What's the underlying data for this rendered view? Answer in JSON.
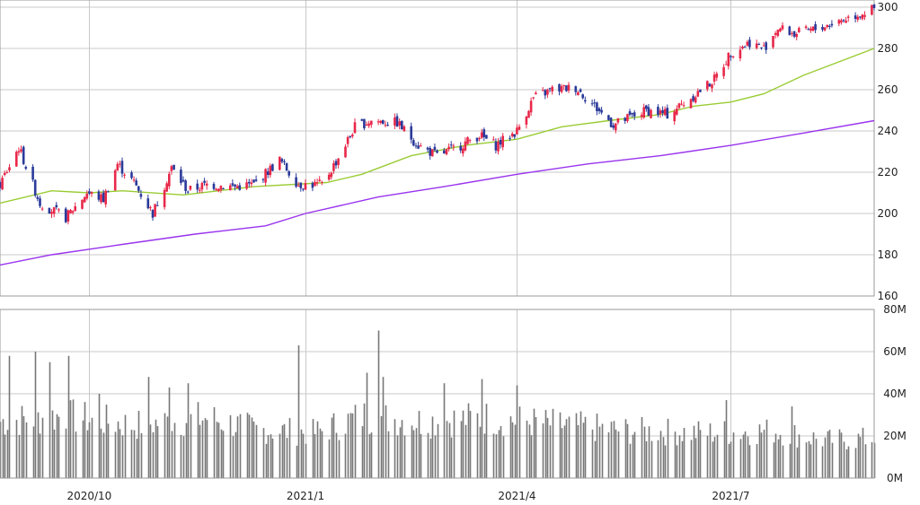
{
  "chart_data": [
    {
      "id": "price",
      "type": "candlestick",
      "title": "",
      "xlabel": "",
      "ylabel": "",
      "ylim": [
        160,
        300
      ],
      "y_ticks": [
        "300",
        "280",
        "260",
        "240",
        "220",
        "200",
        "180",
        "160"
      ],
      "x_ticks": [
        "2020/10",
        "2021/1",
        "2021/4",
        "2021/7"
      ],
      "grid": true,
      "up_color": "#e8284a",
      "down_color": "#2a3a9a",
      "start_date": "2020-08-24",
      "end_date": "2021-08-31",
      "close_path": [
        [
          "2020-08-24",
          214
        ],
        [
          "2020-09-01",
          232
        ],
        [
          "2020-09-10",
          205
        ],
        [
          "2020-09-21",
          198
        ],
        [
          "2020-09-30",
          210
        ],
        [
          "2020-10-07",
          207
        ],
        [
          "2020-10-13",
          224
        ],
        [
          "2020-10-20",
          215
        ],
        [
          "2020-10-28",
          200
        ],
        [
          "2020-11-05",
          222
        ],
        [
          "2020-11-12",
          211
        ],
        [
          "2020-11-20",
          214
        ],
        [
          "2020-12-02",
          213
        ],
        [
          "2020-12-10",
          214
        ],
        [
          "2020-12-21",
          226
        ],
        [
          "2020-12-29",
          214
        ],
        [
          "2021-01-08",
          214
        ],
        [
          "2021-01-15",
          227
        ],
        [
          "2021-01-22",
          242
        ],
        [
          "2021-01-29",
          245
        ],
        [
          "2021-02-09",
          244
        ],
        [
          "2021-02-18",
          233
        ],
        [
          "2021-02-26",
          228
        ],
        [
          "2021-03-08",
          233
        ],
        [
          "2021-03-16",
          238
        ],
        [
          "2021-03-23",
          233
        ],
        [
          "2021-04-01",
          240
        ],
        [
          "2021-04-08",
          256
        ],
        [
          "2021-04-16",
          260
        ],
        [
          "2021-04-26",
          261
        ],
        [
          "2021-05-04",
          252
        ],
        [
          "2021-05-12",
          243
        ],
        [
          "2021-05-18",
          246
        ],
        [
          "2021-05-26",
          250
        ],
        [
          "2021-06-04",
          248
        ],
        [
          "2021-06-14",
          256
        ],
        [
          "2021-06-24",
          265
        ],
        [
          "2021-07-01",
          278
        ],
        [
          "2021-07-09",
          283
        ],
        [
          "2021-07-15",
          280
        ],
        [
          "2021-07-21",
          290
        ],
        [
          "2021-07-28",
          287
        ],
        [
          "2021-08-05",
          289
        ],
        [
          "2021-08-13",
          292
        ],
        [
          "2021-08-20",
          295
        ],
        [
          "2021-08-31",
          299
        ]
      ],
      "series": [
        {
          "color": "#99cc33",
          "values": [
            [
              "2020-08-24",
              205
            ],
            [
              "2020-09-15",
              211
            ],
            [
              "2020-10-01",
              210
            ],
            [
              "2020-10-15",
              211
            ],
            [
              "2020-11-10",
              209
            ],
            [
              "2020-12-10",
              213
            ],
            [
              "2021-01-10",
              215
            ],
            [
              "2021-01-25",
              219
            ],
            [
              "2021-02-15",
              228
            ],
            [
              "2021-03-10",
              233
            ],
            [
              "2021-04-01",
              236
            ],
            [
              "2021-04-20",
              242
            ],
            [
              "2021-05-10",
              245
            ],
            [
              "2021-06-01",
              248
            ],
            [
              "2021-06-15",
              252
            ],
            [
              "2021-07-01",
              254
            ],
            [
              "2021-07-15",
              258
            ],
            [
              "2021-08-01",
              267
            ],
            [
              "2021-08-31",
              280
            ]
          ]
        },
        {
          "color": "#9933ee",
          "values": [
            [
              "2020-08-24",
              175
            ],
            [
              "2020-09-15",
              180
            ],
            [
              "2020-10-15",
              185
            ],
            [
              "2020-11-15",
              190
            ],
            [
              "2020-12-15",
              194
            ],
            [
              "2021-01-01",
              200
            ],
            [
              "2021-02-01",
              208
            ],
            [
              "2021-03-01",
              213
            ],
            [
              "2021-04-01",
              219
            ],
            [
              "2021-05-01",
              224
            ],
            [
              "2021-06-01",
              228
            ],
            [
              "2021-07-01",
              233
            ],
            [
              "2021-08-01",
              239
            ],
            [
              "2021-08-31",
              245
            ]
          ]
        }
      ]
    },
    {
      "id": "volume",
      "type": "bar",
      "title": "",
      "ylim": [
        0,
        80
      ],
      "y_ticks": [
        "80M",
        "60M",
        "40M",
        "20M",
        "0M"
      ],
      "grid": true,
      "bar_color": "#777777",
      "spikes": [
        [
          "2020-08-28",
          58
        ],
        [
          "2020-09-08",
          60
        ],
        [
          "2020-09-14",
          55
        ],
        [
          "2020-09-22",
          58
        ],
        [
          "2020-10-05",
          40
        ],
        [
          "2020-10-26",
          48
        ],
        [
          "2020-11-04",
          43
        ],
        [
          "2020-11-12",
          45
        ],
        [
          "2020-12-29",
          63
        ],
        [
          "2021-01-27",
          50
        ],
        [
          "2021-02-01",
          70
        ],
        [
          "2021-02-03",
          48
        ],
        [
          "2021-03-01",
          45
        ],
        [
          "2021-03-17",
          47
        ],
        [
          "2021-04-01",
          44
        ],
        [
          "2021-05-01",
          47
        ],
        [
          "2021-06-29",
          37
        ],
        [
          "2021-07-27",
          34
        ]
      ],
      "levels": [
        [
          "2020-08-24",
          30
        ],
        [
          "2020-09-20",
          33
        ],
        [
          "2020-10-20",
          28
        ],
        [
          "2020-11-20",
          32
        ],
        [
          "2020-12-10",
          26
        ],
        [
          "2021-01-05",
          24
        ],
        [
          "2021-01-25",
          33
        ],
        [
          "2021-02-20",
          30
        ],
        [
          "2021-03-20",
          32
        ],
        [
          "2021-04-20",
          28
        ],
        [
          "2021-05-20",
          25
        ],
        [
          "2021-06-20",
          24
        ],
        [
          "2021-07-20",
          25
        ],
        [
          "2021-08-10",
          20
        ],
        [
          "2021-08-31",
          21
        ]
      ]
    }
  ]
}
